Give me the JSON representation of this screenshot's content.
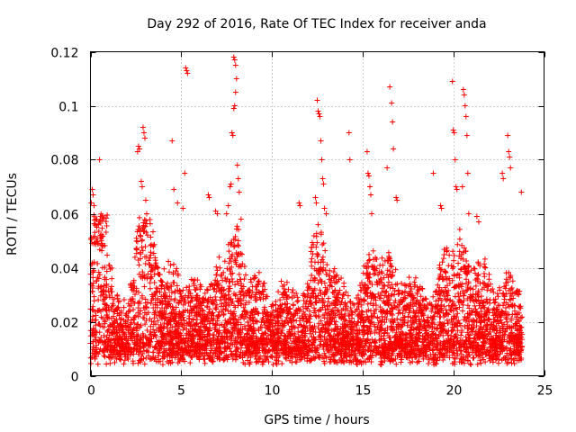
{
  "chart_data": {
    "type": "scatter",
    "title": "Day 292 of 2016, Rate Of TEC Index for receiver anda",
    "xlabel": "GPS time / hours",
    "ylabel": "ROTI / TECUs",
    "xlim": [
      0,
      25
    ],
    "ylim": [
      0,
      0.12
    ],
    "xticks": [
      0,
      5,
      10,
      15,
      20,
      25
    ],
    "xtick_labels": [
      "0",
      "5",
      "10",
      "15",
      "20",
      "25"
    ],
    "yticks": [
      0,
      0.02,
      0.04,
      0.06,
      0.08,
      0.1,
      0.12
    ],
    "ytick_labels": [
      "0",
      "0.02",
      "0.04",
      "0.06",
      "0.08",
      "0.1",
      "0.12"
    ],
    "grid": true,
    "marker": "+",
    "color": "#ff0000",
    "series": [
      {
        "name": "ROTI",
        "points": [
          [
            0.05,
            0.064
          ],
          [
            0.1,
            0.069
          ],
          [
            0.15,
            0.067
          ],
          [
            0.2,
            0.063
          ],
          [
            0.3,
            0.058
          ],
          [
            0.35,
            0.055
          ],
          [
            0.5,
            0.08
          ],
          [
            0.55,
            0.052
          ],
          [
            0.6,
            0.05
          ],
          [
            0.7,
            0.048
          ],
          [
            2.6,
            0.083
          ],
          [
            2.65,
            0.085
          ],
          [
            2.7,
            0.084
          ],
          [
            2.9,
            0.092
          ],
          [
            2.95,
            0.09
          ],
          [
            3.0,
            0.088
          ],
          [
            2.8,
            0.072
          ],
          [
            2.85,
            0.07
          ],
          [
            3.05,
            0.065
          ],
          [
            3.1,
            0.06
          ],
          [
            4.5,
            0.087
          ],
          [
            4.6,
            0.069
          ],
          [
            4.8,
            0.064
          ],
          [
            5.25,
            0.114
          ],
          [
            5.3,
            0.113
          ],
          [
            5.35,
            0.112
          ],
          [
            5.2,
            0.075
          ],
          [
            5.1,
            0.062
          ],
          [
            6.5,
            0.067
          ],
          [
            6.55,
            0.066
          ],
          [
            6.9,
            0.061
          ],
          [
            7.0,
            0.06
          ],
          [
            7.9,
            0.118
          ],
          [
            7.95,
            0.117
          ],
          [
            8.0,
            0.115
          ],
          [
            8.05,
            0.11
          ],
          [
            8.0,
            0.105
          ],
          [
            7.95,
            0.1
          ],
          [
            7.9,
            0.099
          ],
          [
            7.85,
            0.089
          ],
          [
            7.8,
            0.09
          ],
          [
            8.1,
            0.078
          ],
          [
            7.7,
            0.07
          ],
          [
            7.75,
            0.071
          ],
          [
            8.15,
            0.073
          ],
          [
            8.2,
            0.068
          ],
          [
            7.6,
            0.063
          ],
          [
            7.5,
            0.06
          ],
          [
            8.3,
            0.058
          ],
          [
            11.5,
            0.064
          ],
          [
            11.55,
            0.063
          ],
          [
            12.5,
            0.102
          ],
          [
            12.55,
            0.098
          ],
          [
            12.6,
            0.097
          ],
          [
            12.65,
            0.096
          ],
          [
            12.7,
            0.087
          ],
          [
            12.75,
            0.08
          ],
          [
            12.8,
            0.073
          ],
          [
            12.85,
            0.071
          ],
          [
            12.4,
            0.066
          ],
          [
            12.45,
            0.064
          ],
          [
            12.9,
            0.062
          ],
          [
            13.0,
            0.06
          ],
          [
            14.25,
            0.09
          ],
          [
            14.3,
            0.08
          ],
          [
            15.25,
            0.083
          ],
          [
            15.3,
            0.075
          ],
          [
            15.35,
            0.074
          ],
          [
            15.4,
            0.07
          ],
          [
            15.45,
            0.067
          ],
          [
            15.5,
            0.06
          ],
          [
            16.5,
            0.107
          ],
          [
            16.6,
            0.101
          ],
          [
            16.65,
            0.094
          ],
          [
            16.7,
            0.084
          ],
          [
            16.35,
            0.077
          ],
          [
            16.85,
            0.066
          ],
          [
            16.9,
            0.065
          ],
          [
            18.9,
            0.075
          ],
          [
            19.3,
            0.063
          ],
          [
            19.35,
            0.062
          ],
          [
            19.95,
            0.109
          ],
          [
            20.0,
            0.091
          ],
          [
            20.05,
            0.09
          ],
          [
            20.1,
            0.08
          ],
          [
            20.15,
            0.07
          ],
          [
            20.2,
            0.069
          ],
          [
            20.55,
            0.106
          ],
          [
            20.6,
            0.104
          ],
          [
            20.65,
            0.1
          ],
          [
            20.7,
            0.096
          ],
          [
            20.75,
            0.089
          ],
          [
            20.8,
            0.075
          ],
          [
            20.5,
            0.07
          ],
          [
            20.85,
            0.06
          ],
          [
            21.3,
            0.059
          ],
          [
            21.4,
            0.057
          ],
          [
            22.7,
            0.075
          ],
          [
            22.75,
            0.073
          ],
          [
            23.0,
            0.089
          ],
          [
            23.05,
            0.083
          ],
          [
            23.1,
            0.081
          ],
          [
            23.15,
            0.077
          ],
          [
            23.75,
            0.068
          ]
        ]
      }
    ]
  }
}
